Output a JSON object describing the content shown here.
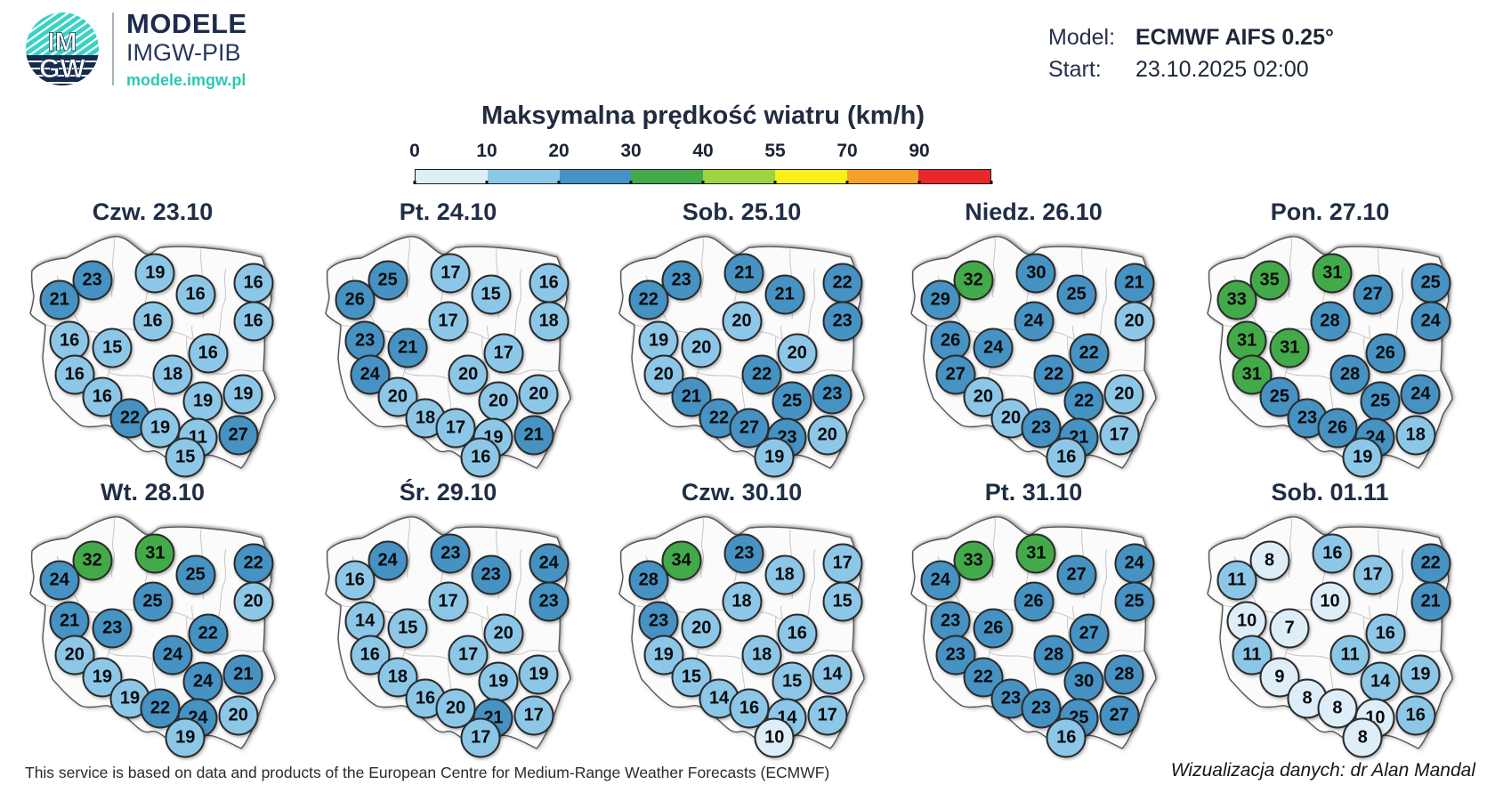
{
  "header": {
    "brand": "MODELE",
    "org": "IMGW-PIB",
    "site": "modele.imgw.pl",
    "logo_text_top": "IM",
    "logo_text_bottom": "GW",
    "model_label": "Model:",
    "model_value": "ECMWF AIFS 0.25°",
    "start_label": "Start:",
    "start_value": "23.10.2025 02:00"
  },
  "footer": {
    "attribution": "This service is based on data and products of the European Centre for Medium-Range Weather Forecasts (ECMWF)",
    "credit": "Wizualizacja danych: dr Alan Mandal"
  },
  "chart_data": {
    "type": "heatmap",
    "subtype": "poland-station-map-small-multiples",
    "title": "Maksymalna prędkość wiatru (km/h)",
    "unit": "km/h",
    "legend": {
      "position": "top-center",
      "tick_labels": [
        "0",
        "10",
        "20",
        "30",
        "40",
        "55",
        "70",
        "90"
      ],
      "bin_edges": [
        0,
        10,
        20,
        30,
        40,
        55,
        70,
        90
      ],
      "bin_colors": [
        "#ddeef8",
        "#8cc7e8",
        "#4592c3",
        "#43aa49",
        "#9ed43f",
        "#f8ef1b",
        "#f6a12b",
        "#e9282c"
      ]
    },
    "marker_style": {
      "border_color": "#2b2b2b",
      "text_color": "#0a0a0a"
    },
    "station_positions_pct": [
      [
        26,
        21
      ],
      [
        51,
        18
      ],
      [
        90,
        22
      ],
      [
        13,
        29
      ],
      [
        67,
        27
      ],
      [
        90,
        38
      ],
      [
        17,
        46
      ],
      [
        34,
        49
      ],
      [
        50,
        38
      ],
      [
        72,
        51
      ],
      [
        58,
        60
      ],
      [
        19,
        60
      ],
      [
        30,
        69
      ],
      [
        41,
        78
      ],
      [
        53,
        82
      ],
      [
        70,
        71
      ],
      [
        86,
        68
      ],
      [
        68,
        86
      ],
      [
        84,
        85
      ],
      [
        63,
        94
      ]
    ],
    "series": [
      {
        "name": "Czw. 23.10",
        "values": [
          23,
          19,
          16,
          21,
          16,
          16,
          16,
          15,
          16,
          16,
          18,
          16,
          16,
          22,
          19,
          19,
          19,
          11,
          27,
          15
        ]
      },
      {
        "name": "Pt. 24.10",
        "values": [
          25,
          17,
          16,
          26,
          15,
          18,
          23,
          21,
          17,
          17,
          20,
          24,
          20,
          18,
          17,
          20,
          20,
          19,
          21,
          16
        ]
      },
      {
        "name": "Sob. 25.10",
        "values": [
          23,
          21,
          22,
          22,
          21,
          23,
          19,
          20,
          20,
          20,
          22,
          20,
          21,
          22,
          27,
          25,
          23,
          23,
          20,
          19
        ]
      },
      {
        "name": "Niedz. 26.10",
        "values": [
          32,
          30,
          21,
          29,
          25,
          20,
          26,
          24,
          24,
          22,
          22,
          27,
          20,
          20,
          23,
          22,
          20,
          21,
          17,
          16
        ]
      },
      {
        "name": "Pon. 27.10",
        "values": [
          35,
          31,
          25,
          33,
          27,
          24,
          31,
          31,
          28,
          26,
          28,
          31,
          25,
          23,
          26,
          25,
          24,
          24,
          18,
          19
        ]
      },
      {
        "name": "Wt. 28.10",
        "values": [
          32,
          31,
          22,
          24,
          25,
          20,
          21,
          23,
          25,
          22,
          24,
          20,
          19,
          19,
          22,
          24,
          21,
          24,
          20,
          19
        ]
      },
      {
        "name": "Śr. 29.10",
        "values": [
          24,
          23,
          24,
          16,
          23,
          23,
          14,
          15,
          17,
          20,
          17,
          16,
          18,
          16,
          20,
          19,
          19,
          21,
          17,
          17
        ]
      },
      {
        "name": "Czw. 30.10",
        "values": [
          34,
          23,
          17,
          28,
          18,
          15,
          23,
          20,
          18,
          16,
          18,
          19,
          15,
          14,
          16,
          15,
          14,
          14,
          17,
          10
        ]
      },
      {
        "name": "Pt. 31.10",
        "values": [
          33,
          31,
          24,
          24,
          27,
          25,
          23,
          26,
          26,
          27,
          28,
          23,
          22,
          23,
          23,
          30,
          28,
          25,
          27,
          16
        ]
      },
      {
        "name": "Sob. 01.11",
        "values": [
          8,
          16,
          22,
          11,
          17,
          21,
          10,
          7,
          10,
          16,
          11,
          11,
          9,
          8,
          8,
          14,
          19,
          10,
          16,
          8
        ]
      }
    ]
  }
}
